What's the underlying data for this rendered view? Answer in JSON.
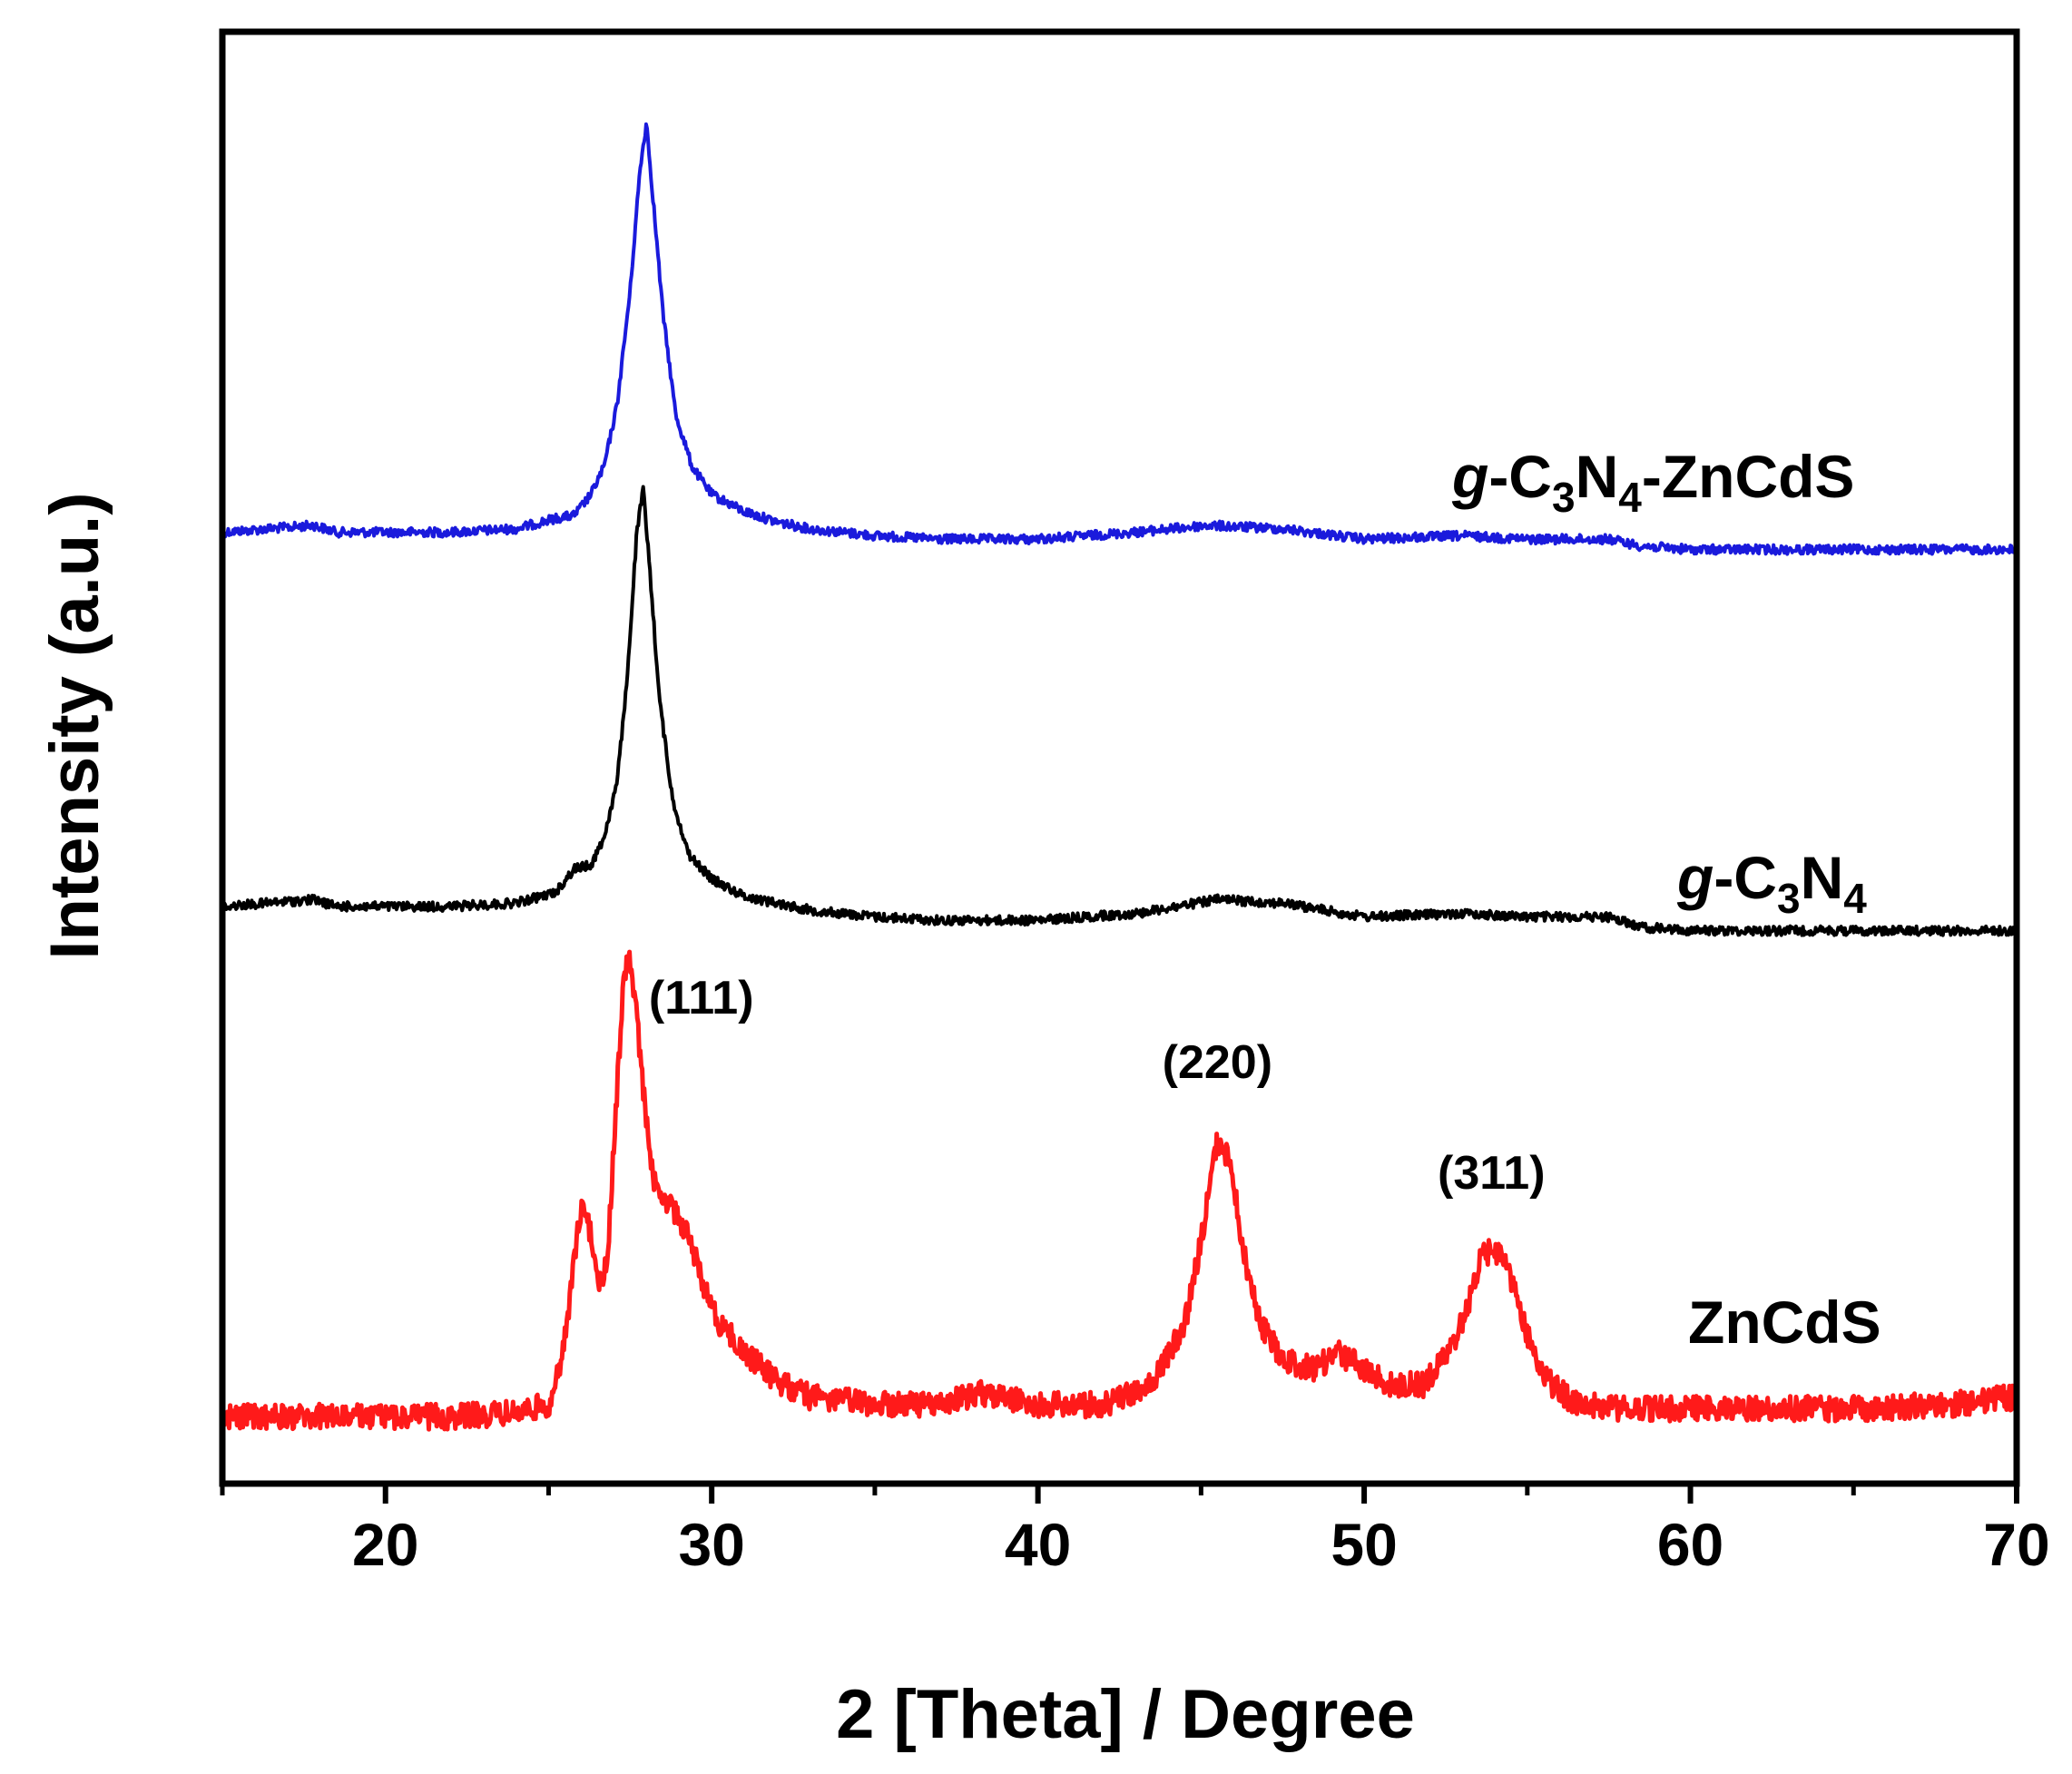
{
  "chart_data": {
    "type": "line",
    "xlabel": "2 [Theta] / Degree",
    "ylabel": "Intensity (a.u.)",
    "xlim": [
      15,
      70
    ],
    "xticks": [
      20,
      30,
      40,
      50,
      60,
      70
    ],
    "xtick_labels": [
      "20",
      "30",
      "40",
      "50",
      "60",
      "70"
    ],
    "y_tick_labels_shown": false,
    "grid": false,
    "legend": "none (series labeled inline)",
    "series": [
      {
        "name": "g-C3N4-ZnCdS",
        "label_parts": [
          {
            "t": "g",
            "style": "italic"
          },
          {
            "t": "-C",
            "style": "normal"
          },
          {
            "t": "3",
            "style": "sub"
          },
          {
            "t": "N",
            "style": "normal"
          },
          {
            "t": "4",
            "style": "sub"
          },
          {
            "t": "-ZnCdS",
            "style": "normal"
          }
        ],
        "color": "#1a1adc",
        "x": [
          15,
          17.8,
          18.5,
          20,
          22,
          24,
          25.2,
          25.8,
          26.3,
          26.7,
          27.1,
          27.5,
          27.8,
          28.0,
          28.2,
          28.5,
          28.9,
          29.4,
          30,
          31,
          32,
          33,
          35,
          37,
          40,
          43,
          45.2,
          47.5,
          50,
          53,
          55,
          57.5,
          58.5,
          60,
          65,
          70
        ],
        "y": [
          0.33,
          0.35,
          0.33,
          0.33,
          0.33,
          0.34,
          0.37,
          0.38,
          0.44,
          0.52,
          0.7,
          1.03,
          1.38,
          1.52,
          1.3,
          0.97,
          0.67,
          0.52,
          0.44,
          0.39,
          0.36,
          0.34,
          0.32,
          0.31,
          0.31,
          0.33,
          0.35,
          0.34,
          0.31,
          0.32,
          0.31,
          0.31,
          0.29,
          0.28,
          0.28,
          0.28
        ]
      },
      {
        "name": "g-C3N4",
        "label_parts": [
          {
            "t": "g",
            "style": "italic"
          },
          {
            "t": "-C",
            "style": "normal"
          },
          {
            "t": "3",
            "style": "sub"
          },
          {
            "t": "N",
            "style": "normal"
          },
          {
            "t": "4",
            "style": "sub"
          }
        ],
        "color": "#000000",
        "x": [
          15,
          17.8,
          18.5,
          20,
          22,
          24,
          25.2,
          25.8,
          26.3,
          26.7,
          27.1,
          27.4,
          27.7,
          27.9,
          28.1,
          28.4,
          28.8,
          29.3,
          30,
          31,
          32,
          33,
          35,
          37,
          40,
          43,
          45.5,
          47.5,
          50,
          53,
          55,
          57.5,
          58.5,
          60,
          65,
          70
        ],
        "y": [
          0.35,
          0.37,
          0.35,
          0.35,
          0.35,
          0.36,
          0.39,
          0.46,
          0.47,
          0.55,
          0.71,
          1.0,
          1.43,
          1.56,
          1.33,
          0.95,
          0.66,
          0.5,
          0.43,
          0.38,
          0.36,
          0.34,
          0.32,
          0.31,
          0.31,
          0.33,
          0.37,
          0.36,
          0.32,
          0.33,
          0.32,
          0.32,
          0.29,
          0.28,
          0.28,
          0.28
        ]
      },
      {
        "name": "ZnCdS",
        "label_parts": [
          {
            "t": "ZnCdS",
            "style": "normal"
          }
        ],
        "color": "#ff1a1a",
        "x": [
          15,
          18,
          20,
          22,
          24,
          25,
          25.4,
          25.7,
          26.0,
          26.3,
          26.6,
          26.8,
          27.0,
          27.3,
          27.5,
          27.7,
          28.0,
          28.3,
          28.7,
          29.0,
          29.3,
          29.7,
          30.2,
          31,
          32,
          33,
          35,
          37,
          38.2,
          40,
          42,
          43.5,
          44.5,
          45.0,
          45.5,
          45.9,
          46.3,
          46.8,
          47.5,
          48.5,
          49.2,
          50,
          50.8,
          51.8,
          52.6,
          53.2,
          53.6,
          54.0,
          54.4,
          54.9,
          55.5,
          56.5,
          58,
          60,
          62,
          65,
          68,
          70
        ],
        "y": [
          0.02,
          0.02,
          0.02,
          0.02,
          0.03,
          0.05,
          0.15,
          0.35,
          0.55,
          0.48,
          0.34,
          0.41,
          0.7,
          1.12,
          1.17,
          1.02,
          0.75,
          0.58,
          0.55,
          0.52,
          0.47,
          0.36,
          0.26,
          0.18,
          0.11,
          0.07,
          0.05,
          0.05,
          0.08,
          0.05,
          0.05,
          0.1,
          0.25,
          0.46,
          0.71,
          0.66,
          0.43,
          0.26,
          0.16,
          0.14,
          0.18,
          0.14,
          0.1,
          0.1,
          0.18,
          0.3,
          0.42,
          0.44,
          0.4,
          0.25,
          0.12,
          0.05,
          0.04,
          0.04,
          0.04,
          0.04,
          0.05,
          0.07
        ]
      }
    ],
    "annotations": [
      {
        "text": "(111)",
        "x": 27.4
      },
      {
        "text": "(220)",
        "x": 45.5
      },
      {
        "text": "(311)",
        "x": 53.9
      }
    ]
  }
}
